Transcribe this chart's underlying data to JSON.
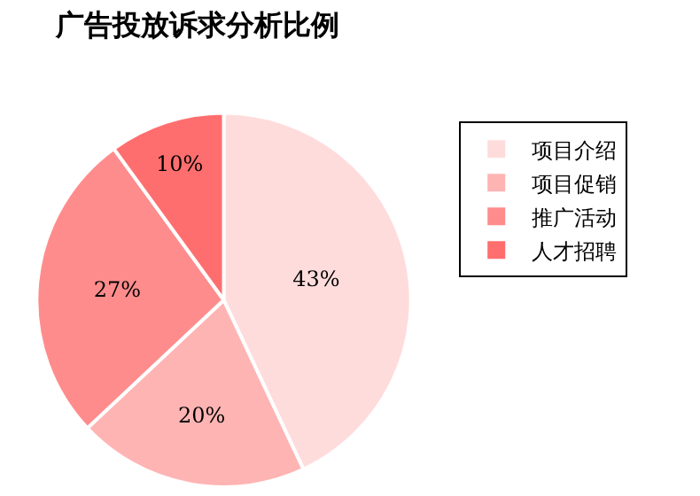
{
  "chart_data": {
    "type": "pie",
    "title": "广告投放诉求分析比例",
    "categories": [
      "项目介绍",
      "项目促销",
      "推广活动",
      "人才招聘"
    ],
    "values": [
      43,
      20,
      27,
      10
    ],
    "value_labels": [
      "43%",
      "20%",
      "27%",
      "10%"
    ],
    "colors": [
      "#ffdcdc",
      "#ffb4b4",
      "#ff8c8c",
      "#ff6e6e"
    ],
    "legend": "top right"
  }
}
